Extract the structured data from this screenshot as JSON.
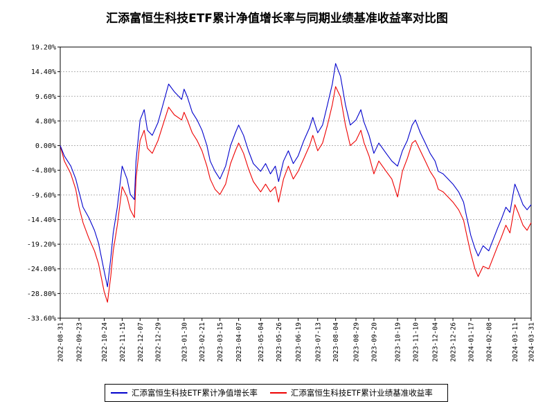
{
  "title": "汇添富恒生科技ETF累计净值增长率与同期业绩基准收益率对比图",
  "chart_data": {
    "type": "line",
    "title": "汇添富恒生科技ETF累计净值增长率与同期业绩基准收益率对比图",
    "xlabel": "",
    "ylabel": "",
    "ylim": [
      -33.6,
      19.2
    ],
    "yticks": [
      "19.20%",
      "14.40%",
      "9.60%",
      "4.80%",
      "0.00%",
      "-4.80%",
      "-9.60%",
      "-14.40%",
      "-19.20%",
      "-24.00%",
      "-28.80%",
      "-33.60%"
    ],
    "xticks": [
      "2022-08-31",
      "2022-09-23",
      "2022-10-24",
      "2022-11-15",
      "2022-12-07",
      "2022-12-29",
      "2023-01-30",
      "2023-02-21",
      "2023-03-15",
      "2023-04-07",
      "2023-05-04",
      "2023-05-26",
      "2023-06-19",
      "2023-07-13",
      "2023-08-04",
      "2023-08-29",
      "2023-09-20",
      "2023-10-19",
      "2023-11-10",
      "2023-12-04",
      "2023-12-26",
      "2024-01-17",
      "2024-02-08",
      "2024-03-11",
      "2024-03-31"
    ],
    "grid": true,
    "legend_position": "bottom",
    "series": [
      {
        "name": "汇添富恒生科技ETF累计净值增长率",
        "color": "#0000cc",
        "x": [
          "2022-08-31",
          "2022-09-05",
          "2022-09-13",
          "2022-09-19",
          "2022-09-23",
          "2022-09-28",
          "2022-10-05",
          "2022-10-12",
          "2022-10-17",
          "2022-10-24",
          "2022-10-28",
          "2022-11-01",
          "2022-11-04",
          "2022-11-09",
          "2022-11-15",
          "2022-11-21",
          "2022-11-25",
          "2022-11-30",
          "2022-12-02",
          "2022-12-07",
          "2022-12-12",
          "2022-12-16",
          "2022-12-22",
          "2022-12-29",
          "2023-01-05",
          "2023-01-11",
          "2023-01-18",
          "2023-01-27",
          "2023-01-30",
          "2023-02-03",
          "2023-02-09",
          "2023-02-15",
          "2023-02-21",
          "2023-02-27",
          "2023-03-03",
          "2023-03-09",
          "2023-03-15",
          "2023-03-22",
          "2023-03-28",
          "2023-04-03",
          "2023-04-07",
          "2023-04-13",
          "2023-04-19",
          "2023-04-25",
          "2023-05-04",
          "2023-05-10",
          "2023-05-16",
          "2023-05-22",
          "2023-05-26",
          "2023-06-01",
          "2023-06-07",
          "2023-06-13",
          "2023-06-19",
          "2023-06-26",
          "2023-07-03",
          "2023-07-07",
          "2023-07-13",
          "2023-07-19",
          "2023-07-25",
          "2023-07-31",
          "2023-08-04",
          "2023-08-10",
          "2023-08-16",
          "2023-08-22",
          "2023-08-29",
          "2023-09-04",
          "2023-09-08",
          "2023-09-14",
          "2023-09-20",
          "2023-09-26",
          "2023-10-05",
          "2023-10-12",
          "2023-10-19",
          "2023-10-25",
          "2023-10-31",
          "2023-11-06",
          "2023-11-10",
          "2023-11-16",
          "2023-11-22",
          "2023-11-28",
          "2023-12-04",
          "2023-12-08",
          "2023-12-14",
          "2023-12-20",
          "2023-12-26",
          "2024-01-02",
          "2024-01-08",
          "2024-01-12",
          "2024-01-17",
          "2024-01-22",
          "2024-01-26",
          "2024-02-01",
          "2024-02-08",
          "2024-02-19",
          "2024-02-23",
          "2024-02-29",
          "2024-03-05",
          "2024-03-11",
          "2024-03-15",
          "2024-03-21",
          "2024-03-26",
          "2024-03-31"
        ],
        "values": [
          0.0,
          -2.0,
          -4.0,
          -6.5,
          -9.0,
          -12.0,
          -14.0,
          -16.5,
          -19.0,
          -24.5,
          -27.5,
          -22.0,
          -17.0,
          -12.0,
          -4.0,
          -6.5,
          -9.5,
          -10.5,
          -3.0,
          5.0,
          7.0,
          3.0,
          2.0,
          4.5,
          8.5,
          12.0,
          10.5,
          9.0,
          11.0,
          9.5,
          6.5,
          5.0,
          3.0,
          0.0,
          -3.0,
          -5.0,
          -6.5,
          -4.0,
          0.0,
          2.5,
          4.0,
          2.0,
          -1.0,
          -3.5,
          -5.0,
          -3.5,
          -5.5,
          -4.0,
          -7.0,
          -3.0,
          -1.0,
          -3.5,
          -2.0,
          1.0,
          3.5,
          5.5,
          2.5,
          4.0,
          8.0,
          12.0,
          16.0,
          13.5,
          8.0,
          4.0,
          5.0,
          7.0,
          4.5,
          2.0,
          -1.5,
          0.5,
          -1.5,
          -3.0,
          -4.0,
          -1.0,
          1.0,
          4.0,
          5.0,
          2.5,
          0.5,
          -1.5,
          -3.0,
          -5.0,
          -5.5,
          -6.5,
          -7.5,
          -9.0,
          -11.0,
          -14.0,
          -17.5,
          -20.0,
          -21.5,
          -19.5,
          -20.5,
          -16.0,
          -14.5,
          -12.0,
          -13.0,
          -7.5,
          -9.0,
          -11.5,
          -12.5,
          -11.5
        ]
      },
      {
        "name": "汇添富恒生科技ETF累计业绩基准收益率",
        "color": "#ee0000",
        "x": [
          "2022-08-31",
          "2022-09-05",
          "2022-09-13",
          "2022-09-19",
          "2022-09-23",
          "2022-09-28",
          "2022-10-05",
          "2022-10-12",
          "2022-10-17",
          "2022-10-24",
          "2022-10-28",
          "2022-11-01",
          "2022-11-04",
          "2022-11-09",
          "2022-11-15",
          "2022-11-21",
          "2022-11-25",
          "2022-11-30",
          "2022-12-02",
          "2022-12-07",
          "2022-12-12",
          "2022-12-16",
          "2022-12-22",
          "2022-12-29",
          "2023-01-05",
          "2023-01-11",
          "2023-01-18",
          "2023-01-27",
          "2023-01-30",
          "2023-02-03",
          "2023-02-09",
          "2023-02-15",
          "2023-02-21",
          "2023-02-27",
          "2023-03-03",
          "2023-03-09",
          "2023-03-15",
          "2023-03-22",
          "2023-03-28",
          "2023-04-03",
          "2023-04-07",
          "2023-04-13",
          "2023-04-19",
          "2023-04-25",
          "2023-05-04",
          "2023-05-10",
          "2023-05-16",
          "2023-05-22",
          "2023-05-26",
          "2023-06-01",
          "2023-06-07",
          "2023-06-13",
          "2023-06-19",
          "2023-06-26",
          "2023-07-03",
          "2023-07-07",
          "2023-07-13",
          "2023-07-19",
          "2023-07-25",
          "2023-07-31",
          "2023-08-04",
          "2023-08-10",
          "2023-08-16",
          "2023-08-22",
          "2023-08-29",
          "2023-09-04",
          "2023-09-08",
          "2023-09-14",
          "2023-09-20",
          "2023-09-26",
          "2023-10-05",
          "2023-10-12",
          "2023-10-19",
          "2023-10-25",
          "2023-10-31",
          "2023-11-06",
          "2023-11-10",
          "2023-11-16",
          "2023-11-22",
          "2023-11-28",
          "2023-12-04",
          "2023-12-08",
          "2023-12-14",
          "2023-12-20",
          "2023-12-26",
          "2024-01-02",
          "2024-01-08",
          "2024-01-12",
          "2024-01-17",
          "2024-01-22",
          "2024-01-26",
          "2024-02-01",
          "2024-02-08",
          "2024-02-19",
          "2024-02-23",
          "2024-02-29",
          "2024-03-05",
          "2024-03-11",
          "2024-03-15",
          "2024-03-21",
          "2024-03-26",
          "2024-03-31"
        ],
        "values": [
          0.0,
          -3.0,
          -5.5,
          -8.5,
          -12.0,
          -15.0,
          -18.0,
          -20.5,
          -23.0,
          -28.5,
          -30.5,
          -25.5,
          -20.5,
          -15.5,
          -8.0,
          -10.0,
          -12.5,
          -14.0,
          -6.5,
          1.0,
          3.0,
          -0.5,
          -1.5,
          1.0,
          4.5,
          7.5,
          6.0,
          5.0,
          6.5,
          5.0,
          2.5,
          1.0,
          -1.0,
          -4.0,
          -6.5,
          -8.5,
          -9.5,
          -7.5,
          -3.5,
          -1.0,
          0.5,
          -1.5,
          -4.5,
          -7.0,
          -9.0,
          -7.5,
          -9.0,
          -8.0,
          -11.0,
          -6.5,
          -4.0,
          -6.5,
          -5.0,
          -2.5,
          0.0,
          2.0,
          -1.0,
          0.5,
          4.0,
          8.0,
          11.5,
          9.5,
          4.0,
          0.0,
          1.0,
          3.0,
          0.5,
          -2.0,
          -5.5,
          -3.0,
          -5.0,
          -6.5,
          -10.0,
          -5.0,
          -2.5,
          0.5,
          1.0,
          -1.0,
          -3.0,
          -5.0,
          -6.5,
          -8.5,
          -9.0,
          -10.0,
          -11.0,
          -12.5,
          -14.5,
          -17.5,
          -21.0,
          -24.0,
          -25.5,
          -23.5,
          -24.0,
          -19.5,
          -18.0,
          -15.5,
          -17.0,
          -11.5,
          -13.0,
          -15.5,
          -16.5,
          -15.0
        ]
      }
    ]
  }
}
